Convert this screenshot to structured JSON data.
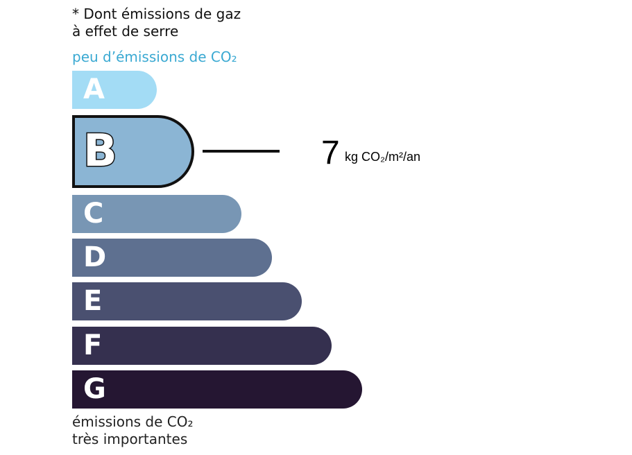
{
  "note": [
    "* Dont émissions de gaz",
    "à effet de serre"
  ],
  "top_label": "peu d’émissions de CO₂",
  "bottom_label": [
    "émissions de CO₂",
    "très importantes"
  ],
  "active_class": "B",
  "value": "7",
  "unit": "kg CO₂/m²/an",
  "classes": [
    {
      "letter": "A",
      "color": "#a3dcf5"
    },
    {
      "letter": "B",
      "color": "#8bb5d4"
    },
    {
      "letter": "C",
      "color": "#7896b4"
    },
    {
      "letter": "D",
      "color": "#5e7090"
    },
    {
      "letter": "E",
      "color": "#4a5070"
    },
    {
      "letter": "F",
      "color": "#35304f"
    },
    {
      "letter": "G",
      "color": "#251632"
    }
  ]
}
